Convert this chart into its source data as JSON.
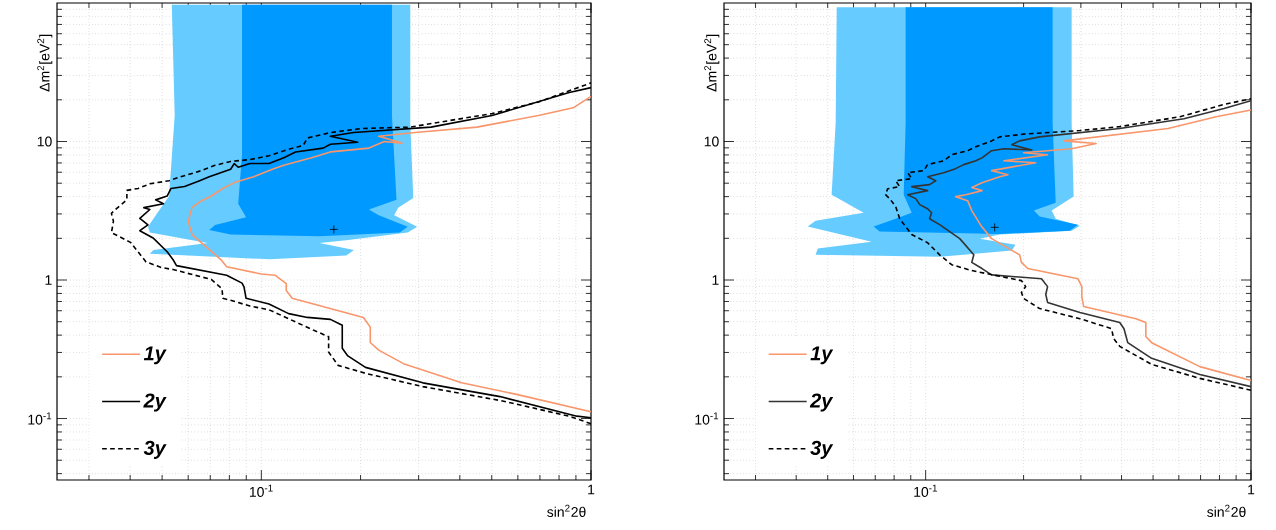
{
  "chart_data": [
    {
      "type": "line",
      "xlabel": "sin$^{2}$2θ",
      "ylabel": "Δm$^{2}$[eV$^{2}$]",
      "log": "xy",
      "grid": true,
      "legend": "bottom left",
      "xlim": [
        0.024,
        1
      ],
      "ylim": [
        0.036,
        100
      ],
      "xticks": [
        {
          "value": 0.1,
          "label": "10$^{-1}$"
        },
        1
      ],
      "yticks": [
        {
          "value": 0.1,
          "label": "10$^{-1}$"
        },
        1,
        10
      ],
      "series": [
        {
          "type": "area",
          "color": "#66ccff",
          "x": [
            0.0535,
            0.283,
            0.283,
            0.289,
            0.26,
            0.253,
            0.297,
            0.278,
            0.181,
            0.15,
            0.191,
            0.181,
            0.106,
            0.0459,
            0.0471,
            0.0687,
            0.0459,
            0.0453,
            0.0525,
            0.0546,
            0.0535
          ],
          "values": [
            97,
            97,
            13.6,
            3.91,
            3.33,
            2.93,
            2.42,
            2.2,
            1.94,
            1.85,
            1.65,
            1.5,
            1.41,
            1.55,
            1.65,
            1.85,
            2.2,
            2.42,
            4.04,
            15.4,
            97
          ]
        },
        {
          "type": "area",
          "color": "#0099ff",
          "x": [
            0.0874,
            0.249,
            0.249,
            0.257,
            0.212,
            0.227,
            0.278,
            0.263,
            0.15,
            0.0807,
            0.0695,
            0.0724,
            0.0899,
            0.0851,
            0.0874,
            0.0874
          ],
          "values": [
            97,
            97,
            15.4,
            3.79,
            3.23,
            2.93,
            2.42,
            2.2,
            2.07,
            2.13,
            2.3,
            2.5,
            2.84,
            3.55,
            8.1,
            97
          ]
        },
        {
          "type": "scatter",
          "marker": "cross",
          "color": "#000000",
          "x": [
            0.166
          ],
          "values": [
            2.32
          ]
        },
        {
          "name": "1y",
          "color": "#f9966b",
          "x": [
            1.0,
            0.59,
            0.405,
            0.27,
            0.227,
            0.214,
            0.214,
            0.204,
            0.167,
            0.124,
            0.119,
            0.119,
            0.11,
            0.1,
            0.0785,
            0.0755,
            0.0616,
            0.06,
            0.0616,
            0.065,
            0.0705,
            0.0764,
            0.0828,
            0.0948,
            0.108,
            0.117,
            0.142,
            0.162,
            0.212,
            0.236,
            0.267,
            0.227,
            0.293,
            0.451,
            0.693,
            0.883,
            1.0
          ],
          "values": [
            0.112,
            0.15,
            0.181,
            0.249,
            0.312,
            0.354,
            0.457,
            0.537,
            0.61,
            0.738,
            0.839,
            0.942,
            1.083,
            1.105,
            1.247,
            1.4,
            2.13,
            2.66,
            3.33,
            3.67,
            4.04,
            4.58,
            5.05,
            5.56,
            6.31,
            6.73,
            7.64,
            8.41,
            8.96,
            10.0,
            9.74,
            10.9,
            11.6,
            12.7,
            15.4,
            17.5,
            21.2
          ]
        },
        {
          "name": "2y",
          "color": "#000000",
          "x": [
            1.0,
            0.906,
            0.53,
            0.309,
            0.207,
            0.183,
            0.176,
            0.176,
            0.162,
            0.138,
            0.121,
            0.1055,
            0.0899,
            0.0886,
            0.0874,
            0.0785,
            0.0553,
            0.054,
            0.0518,
            0.0471,
            0.0428,
            0.0453,
            0.0428,
            0.0459,
            0.044,
            0.0505,
            0.0478,
            0.0518,
            0.0532,
            0.0585,
            0.065,
            0.0695,
            0.0807,
            0.0828,
            0.0851,
            0.0923,
            0.1055,
            0.117,
            0.127,
            0.154,
            0.162,
            0.196,
            0.162,
            0.1905,
            0.327,
            0.501,
            0.859,
            1.0
          ],
          "values": [
            0.1012,
            0.104,
            0.144,
            0.181,
            0.234,
            0.283,
            0.322,
            0.472,
            0.52,
            0.537,
            0.572,
            0.671,
            0.738,
            0.891,
            0.949,
            1.083,
            1.27,
            1.4,
            1.6,
            2.0,
            2.27,
            2.5,
            2.79,
            3.23,
            3.33,
            3.55,
            3.79,
            4.04,
            4.58,
            4.73,
            5.21,
            5.56,
            6.31,
            6.93,
            6.52,
            6.93,
            6.93,
            7.64,
            8.41,
            8.96,
            9.55,
            9.87,
            10.9,
            11.6,
            12.7,
            15.4,
            22.6,
            24.5
          ]
        },
        {
          "name": "3y",
          "line_style": "dashed",
          "color": "#000000",
          "x": [
            1.0,
            0.859,
            0.53,
            0.309,
            0.207,
            0.171,
            0.16,
            0.16,
            0.146,
            0.1055,
            0.0923,
            0.0807,
            0.0764,
            0.076,
            0.0705,
            0.054,
            0.0498,
            0.0447,
            0.0401,
            0.0351,
            0.0356,
            0.0351,
            0.0361,
            0.0391,
            0.0391,
            0.0423,
            0.0459,
            0.0525,
            0.0569,
            0.065,
            0.0724,
            0.0807,
            0.0923,
            0.1055,
            0.119,
            0.134,
            0.138,
            0.162,
            0.201,
            0.283,
            0.335,
            0.501,
            0.693,
            1.0
          ],
          "values": [
            0.0918,
            0.104,
            0.135,
            0.17,
            0.212,
            0.242,
            0.302,
            0.39,
            0.428,
            0.61,
            0.649,
            0.714,
            0.738,
            0.865,
            1.01,
            1.19,
            1.23,
            1.35,
            1.87,
            2.2,
            2.66,
            3.03,
            3.23,
            3.79,
            4.44,
            4.58,
            4.95,
            5.21,
            5.56,
            6.11,
            6.73,
            7.18,
            7.4,
            7.89,
            8.69,
            9.37,
            10.6,
            11.6,
            12.4,
            12.7,
            13.6,
            15.9,
            19.3,
            26.5
          ]
        }
      ]
    },
    {
      "type": "line",
      "xlabel": "sin$^{2}$2θ",
      "ylabel": "Δm$^{2}$[eV$^{2}$]",
      "log": "xy",
      "grid": true,
      "legend": "bottom left",
      "xlim": [
        0.024,
        1
      ],
      "ylim": [
        0.036,
        100
      ],
      "xticks": [
        {
          "value": 0.1,
          "label": "10$^{-1}$"
        },
        1
      ],
      "yticks": [
        {
          "value": 0.1,
          "label": "10$^{-1}$"
        },
        1,
        10
      ],
      "series": [
        {
          "type": "area",
          "color": "#66ccff",
          "x": [
            0.0533,
            0.281,
            0.281,
            0.285,
            0.244,
            0.251,
            0.298,
            0.281,
            0.169,
            0.1466,
            0.189,
            0.184,
            0.1104,
            0.0459,
            0.0466,
            0.0682,
            0.0434,
            0.0459,
            0.0645,
            0.0514,
            0.0529,
            0.0533
          ],
          "values": [
            93,
            93,
            13.7,
            4.0,
            3.17,
            2.77,
            2.46,
            2.27,
            2.13,
            1.99,
            1.8,
            1.63,
            1.47,
            1.52,
            1.69,
            1.89,
            2.43,
            2.68,
            3.06,
            4.13,
            13.7,
            93
          ]
        },
        {
          "type": "area",
          "color": "#0099ff",
          "x": [
            0.0868,
            0.2456,
            0.2456,
            0.251,
            0.215,
            0.224,
            0.294,
            0.277,
            0.169,
            0.0722,
            0.0692,
            0.0809,
            0.0906,
            0.0856,
            0.0868,
            0.0868
          ],
          "values": [
            93,
            93,
            13.7,
            3.62,
            3.17,
            2.87,
            2.51,
            2.27,
            2.15,
            2.24,
            2.43,
            2.77,
            3.06,
            4.13,
            13.7,
            93
          ]
        },
        {
          "type": "scatter",
          "marker": "cross",
          "color": "#000000",
          "x": [
            0.163
          ],
          "values": [
            2.4
          ]
        },
        {
          "name": "1y",
          "color": "#f9966b",
          "x": [
            1.0,
            0.696,
            0.495,
            0.475,
            0.475,
            0.443,
            0.306,
            0.302,
            0.302,
            0.294,
            0.206,
            0.197,
            0.1945,
            0.1595,
            0.1486,
            0.1386,
            0.1346,
            0.1236,
            0.1328,
            0.149,
            0.1386,
            0.149,
            0.169,
            0.179,
            0.1595,
            0.218,
            0.174,
            0.237,
            0.2,
            0.281,
            0.334,
            0.266,
            0.556,
            0.781,
            1.0
          ],
          "values": [
            0.188,
            0.237,
            0.353,
            0.391,
            0.493,
            0.526,
            0.643,
            0.759,
            0.896,
            1.02,
            1.21,
            1.34,
            1.52,
            1.99,
            2.43,
            3.17,
            3.74,
            4.0,
            4.13,
            4.42,
            4.66,
            5.04,
            5.57,
            5.76,
            6.16,
            7.03,
            7.26,
            8.03,
            8.3,
            8.87,
            9.68,
            10.1,
            12.4,
            15.1,
            16.9
          ]
        },
        {
          "name": "2y",
          "color": "#333333",
          "x": [
            1.0,
            0.696,
            0.495,
            0.418,
            0.407,
            0.395,
            0.298,
            0.237,
            0.234,
            0.237,
            0.227,
            0.1595,
            0.149,
            0.1386,
            0.1406,
            0.1273,
            0.1104,
            0.1028,
            0.1043,
            0.1014,
            0.0959,
            0.0932,
            0.0881,
            0.1014,
            0.0906,
            0.1028,
            0.1074,
            0.1014,
            0.1136,
            0.1236,
            0.1309,
            0.1426,
            0.149,
            0.1595,
            0.174,
            0.212,
            0.184,
            0.1945,
            0.224,
            0.395,
            0.622,
            0.826,
            1.0
          ],
          "values": [
            0.17,
            0.208,
            0.272,
            0.353,
            0.445,
            0.493,
            0.583,
            0.689,
            0.787,
            0.896,
            1.02,
            1.09,
            1.21,
            1.34,
            1.52,
            1.99,
            2.51,
            2.77,
            3.06,
            3.27,
            3.5,
            3.87,
            4.13,
            4.42,
            4.72,
            4.88,
            5.21,
            5.57,
            5.95,
            6.37,
            6.81,
            7.26,
            7.62,
            8.58,
            8.87,
            8.69,
            9.48,
            10.1,
            10.8,
            12.4,
            14.6,
            17.3,
            19.7
          ]
        },
        {
          "name": "3y",
          "line_style": "dashed",
          "color": "#000000",
          "x": [
            1.0,
            0.696,
            0.495,
            0.395,
            0.378,
            0.373,
            0.298,
            0.224,
            0.2,
            0.197,
            0.203,
            0.197,
            0.1386,
            0.1202,
            0.1104,
            0.1014,
            0.0906,
            0.0832,
            0.0809,
            0.0775,
            0.0753,
            0.0764,
            0.0832,
            0.0809,
            0.0906,
            0.0881,
            0.0986,
            0.1014,
            0.1136,
            0.1202,
            0.1346,
            0.1426,
            0.1595,
            0.169,
            0.2,
            0.298,
            0.395,
            0.605,
            0.826,
            1.0
          ],
          "values": [
            0.16,
            0.195,
            0.246,
            0.332,
            0.379,
            0.445,
            0.526,
            0.622,
            0.736,
            0.813,
            0.896,
            0.99,
            1.17,
            1.29,
            1.52,
            1.86,
            2.13,
            2.77,
            3.39,
            3.87,
            4.13,
            4.56,
            4.72,
            5.21,
            5.39,
            5.95,
            6.16,
            6.81,
            7.26,
            8.03,
            8.58,
            9.16,
            10.1,
            10.8,
            11.3,
            12.0,
            12.8,
            15.1,
            18.5,
            20.4
          ]
        }
      ]
    }
  ]
}
